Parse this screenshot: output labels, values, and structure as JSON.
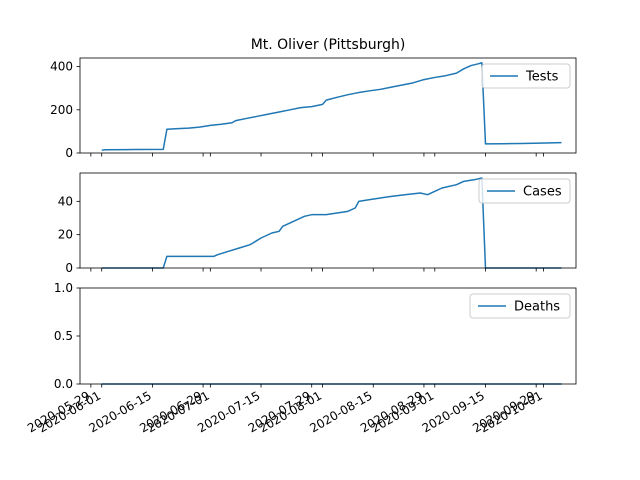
{
  "chart_data": {
    "title": "Mt. Oliver (Pittsburgh)",
    "x_axis": {
      "type": "date",
      "xlim": [
        "2020-05-26",
        "2020-10-10"
      ],
      "tick_labels": [
        {
          "date": "2020-05-29",
          "label": "2020-05-29"
        },
        {
          "date": "2020-06-01",
          "label": "2020-06-01"
        },
        {
          "date": "2020-06-15",
          "label": "2020-06-15"
        },
        {
          "date": "2020-06-29",
          "label": "2020-06-29"
        },
        {
          "date": "2020-07-01",
          "label": "2020-07-01"
        },
        {
          "date": "2020-07-15",
          "label": "2020-07-15"
        },
        {
          "date": "2020-07-29",
          "label": "2020-07-29"
        },
        {
          "date": "2020-08-01",
          "label": "2020-08-01"
        },
        {
          "date": "2020-08-15",
          "label": "2020-08-15"
        },
        {
          "date": "2020-08-29",
          "label": "2020-08-29"
        },
        {
          "date": "2020-09-01",
          "label": "2020-09-01"
        },
        {
          "date": "2020-09-15",
          "label": "2020-09-15"
        },
        {
          "date": "2020-09-29",
          "label": "2020-09-29"
        },
        {
          "date": "2020-10-01",
          "label": "2020-10-01"
        }
      ]
    },
    "subplots": [
      {
        "type": "line",
        "series": [
          {
            "name": "Tests",
            "color": "#1f77b4"
          }
        ],
        "ylim": [
          0,
          440
        ],
        "yticks": [
          0,
          200,
          400
        ],
        "legend": "upper right",
        "points": [
          [
            "2020-06-01",
            13
          ],
          [
            "2020-06-02",
            15
          ],
          [
            "2020-06-10",
            16
          ],
          [
            "2020-06-18",
            17
          ],
          [
            "2020-06-19",
            110
          ],
          [
            "2020-06-22",
            113
          ],
          [
            "2020-06-25",
            115
          ],
          [
            "2020-06-28",
            120
          ],
          [
            "2020-07-01",
            128
          ],
          [
            "2020-07-04",
            133
          ],
          [
            "2020-07-07",
            140
          ],
          [
            "2020-07-08",
            150
          ],
          [
            "2020-07-11",
            160
          ],
          [
            "2020-07-14",
            170
          ],
          [
            "2020-07-17",
            180
          ],
          [
            "2020-07-20",
            190
          ],
          [
            "2020-07-23",
            200
          ],
          [
            "2020-07-26",
            210
          ],
          [
            "2020-07-29",
            215
          ],
          [
            "2020-08-01",
            225
          ],
          [
            "2020-08-02",
            245
          ],
          [
            "2020-08-05",
            258
          ],
          [
            "2020-08-08",
            270
          ],
          [
            "2020-08-11",
            280
          ],
          [
            "2020-08-14",
            288
          ],
          [
            "2020-08-17",
            295
          ],
          [
            "2020-08-20",
            305
          ],
          [
            "2020-08-23",
            315
          ],
          [
            "2020-08-26",
            325
          ],
          [
            "2020-08-29",
            340
          ],
          [
            "2020-09-01",
            350
          ],
          [
            "2020-09-04",
            358
          ],
          [
            "2020-09-07",
            370
          ],
          [
            "2020-09-09",
            390
          ],
          [
            "2020-09-11",
            405
          ],
          [
            "2020-09-13",
            413
          ],
          [
            "2020-09-14",
            418
          ],
          [
            "2020-09-15",
            42
          ],
          [
            "2020-09-20",
            43
          ],
          [
            "2020-09-25",
            44
          ],
          [
            "2020-09-30",
            46
          ],
          [
            "2020-10-03",
            47
          ],
          [
            "2020-10-06",
            48
          ]
        ]
      },
      {
        "type": "line",
        "series": [
          {
            "name": "Cases",
            "color": "#1f77b4"
          }
        ],
        "ylim": [
          0,
          57
        ],
        "yticks": [
          0,
          20,
          40
        ],
        "legend": "upper right",
        "points": [
          [
            "2020-06-01",
            0
          ],
          [
            "2020-06-18",
            0
          ],
          [
            "2020-06-19",
            7
          ],
          [
            "2020-07-02",
            7
          ],
          [
            "2020-07-03",
            8
          ],
          [
            "2020-07-06",
            10
          ],
          [
            "2020-07-09",
            12
          ],
          [
            "2020-07-12",
            14
          ],
          [
            "2020-07-15",
            18
          ],
          [
            "2020-07-18",
            21
          ],
          [
            "2020-07-20",
            22
          ],
          [
            "2020-07-21",
            25
          ],
          [
            "2020-07-24",
            28
          ],
          [
            "2020-07-27",
            31
          ],
          [
            "2020-07-29",
            32
          ],
          [
            "2020-08-02",
            32
          ],
          [
            "2020-08-05",
            33
          ],
          [
            "2020-08-08",
            34
          ],
          [
            "2020-08-10",
            36
          ],
          [
            "2020-08-11",
            40
          ],
          [
            "2020-08-14",
            41
          ],
          [
            "2020-08-17",
            42
          ],
          [
            "2020-08-20",
            43
          ],
          [
            "2020-08-24",
            44
          ],
          [
            "2020-08-28",
            45
          ],
          [
            "2020-08-30",
            44
          ],
          [
            "2020-09-01",
            46
          ],
          [
            "2020-09-03",
            48
          ],
          [
            "2020-09-07",
            50
          ],
          [
            "2020-09-09",
            52
          ],
          [
            "2020-09-12",
            53
          ],
          [
            "2020-09-14",
            54
          ],
          [
            "2020-09-15",
            0
          ],
          [
            "2020-10-06",
            0
          ]
        ]
      },
      {
        "type": "line",
        "series": [
          {
            "name": "Deaths",
            "color": "#1f77b4"
          }
        ],
        "ylim": [
          0,
          1
        ],
        "yticks": [
          0.0,
          0.5,
          1.0
        ],
        "ytick_labels": [
          "0.0",
          "0.5",
          "1.0"
        ],
        "legend": "upper right",
        "points": [
          [
            "2020-06-01",
            0
          ],
          [
            "2020-10-06",
            0
          ]
        ]
      }
    ]
  }
}
